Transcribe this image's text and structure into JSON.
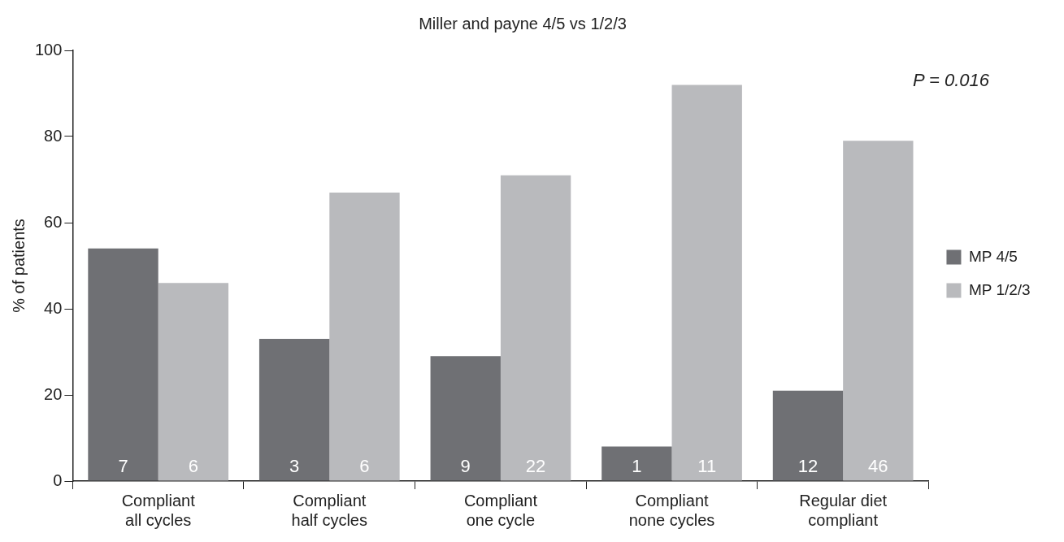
{
  "chart_data": {
    "type": "bar",
    "title": "Miller and payne 4/5 vs 1/2/3",
    "ylabel": "% of patients",
    "categories": [
      "Compliant all cycles",
      "Compliant half cycles",
      "Compliant one cycle",
      "Compliant none cycles",
      "Regular diet compliant"
    ],
    "series": [
      {
        "name": "MP 4/5",
        "color": "#6f7074",
        "values": [
          54,
          33,
          29,
          8,
          21
        ]
      },
      {
        "name": "MP 1/2/3",
        "color": "#b9babd",
        "values": [
          46,
          67,
          71,
          92,
          79
        ]
      }
    ],
    "ylim": [
      0,
      100
    ],
    "yticks": [
      0,
      20,
      40,
      60,
      80,
      100
    ],
    "grid": false,
    "legend": "right",
    "annotations": [
      "P = 0.016",
      {
        "text": "7",
        "x": "Compliant all cycles",
        "y": 0
      },
      {
        "text": "6",
        "x": "Compliant all cycles",
        "y": 0
      },
      {
        "text": "3",
        "x": "Compliant half cycles",
        "y": 0
      },
      {
        "text": "6",
        "x": "Compliant half cycles",
        "y": 0
      },
      {
        "text": "9",
        "x": "Compliant one cycle",
        "y": 0
      },
      {
        "text": "22",
        "x": "Compliant one cycle",
        "y": 0
      },
      {
        "text": "1",
        "x": "Compliant none cycles",
        "y": 0
      },
      {
        "text": "11",
        "x": "Compliant none cycles",
        "y": 0
      },
      {
        "text": "12",
        "x": "Regular diet compliant",
        "y": 0
      },
      {
        "text": "46",
        "x": "Regular diet compliant",
        "y": 0
      }
    ]
  }
}
